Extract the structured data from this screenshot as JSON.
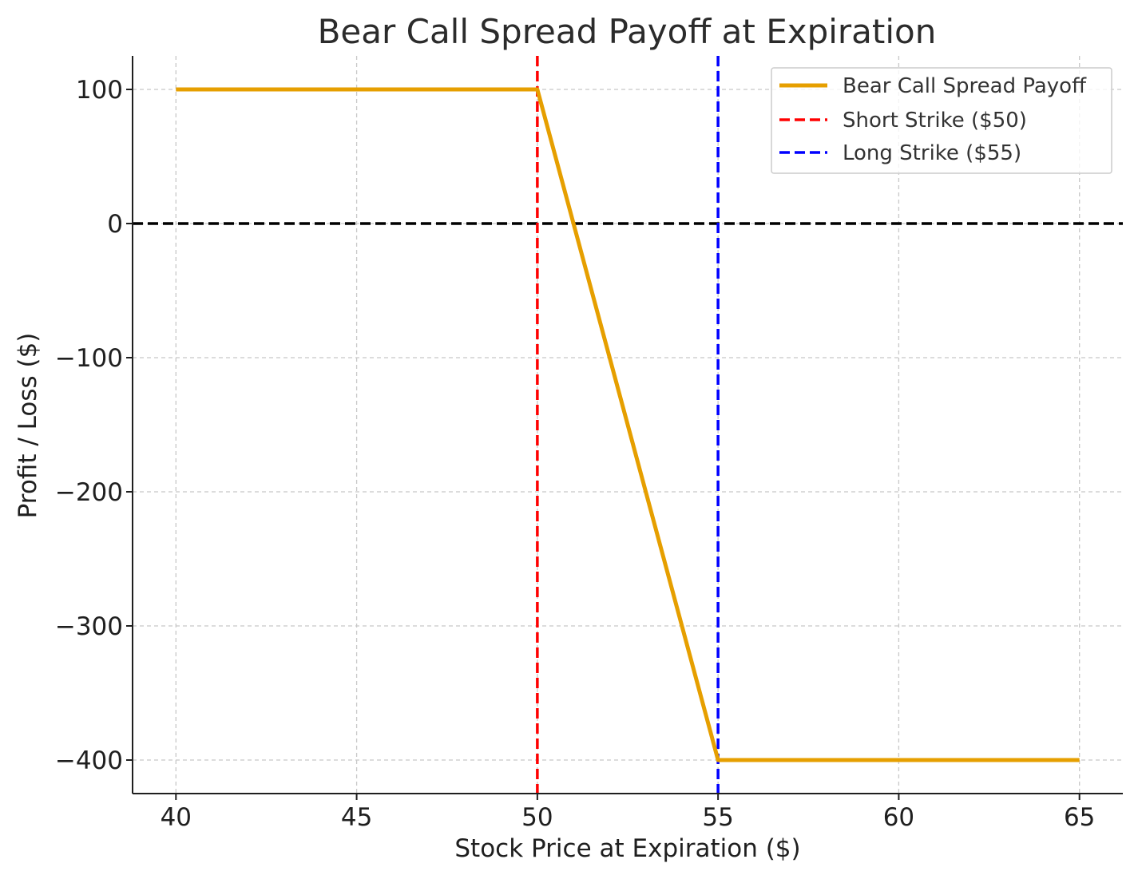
{
  "chart_data": {
    "type": "line",
    "title": "Bear Call Spread Payoff at Expiration",
    "xlabel": "Stock Price at Expiration ($)",
    "ylabel": "Profit / Loss ($)",
    "xlim": [
      38.8,
      66.2
    ],
    "ylim": [
      -425,
      125
    ],
    "xticks": [
      40,
      45,
      50,
      55,
      60,
      65
    ],
    "xtick_labels": [
      "40",
      "45",
      "50",
      "55",
      "60",
      "65"
    ],
    "yticks": [
      100,
      0,
      -100,
      -200,
      -300,
      -400
    ],
    "ytick_labels": [
      "100",
      "0",
      "−100",
      "−200",
      "−300",
      "−400"
    ],
    "grid": true,
    "legend_position": "top-right",
    "series": [
      {
        "name": "Bear Call Spread Payoff",
        "style": "solid",
        "color": "#E69F00",
        "x": [
          40,
          50,
          55,
          65
        ],
        "y": [
          100,
          100,
          -400,
          -400
        ]
      }
    ],
    "vlines": [
      {
        "name": "Short Strike ($50)",
        "x": 50,
        "color": "#FF0000",
        "style": "dashed"
      },
      {
        "name": "Long Strike ($55)",
        "x": 55,
        "color": "#0000FF",
        "style": "dashed"
      }
    ],
    "hlines": [
      {
        "y": 0,
        "color": "#000000",
        "style": "dashed"
      }
    ]
  }
}
